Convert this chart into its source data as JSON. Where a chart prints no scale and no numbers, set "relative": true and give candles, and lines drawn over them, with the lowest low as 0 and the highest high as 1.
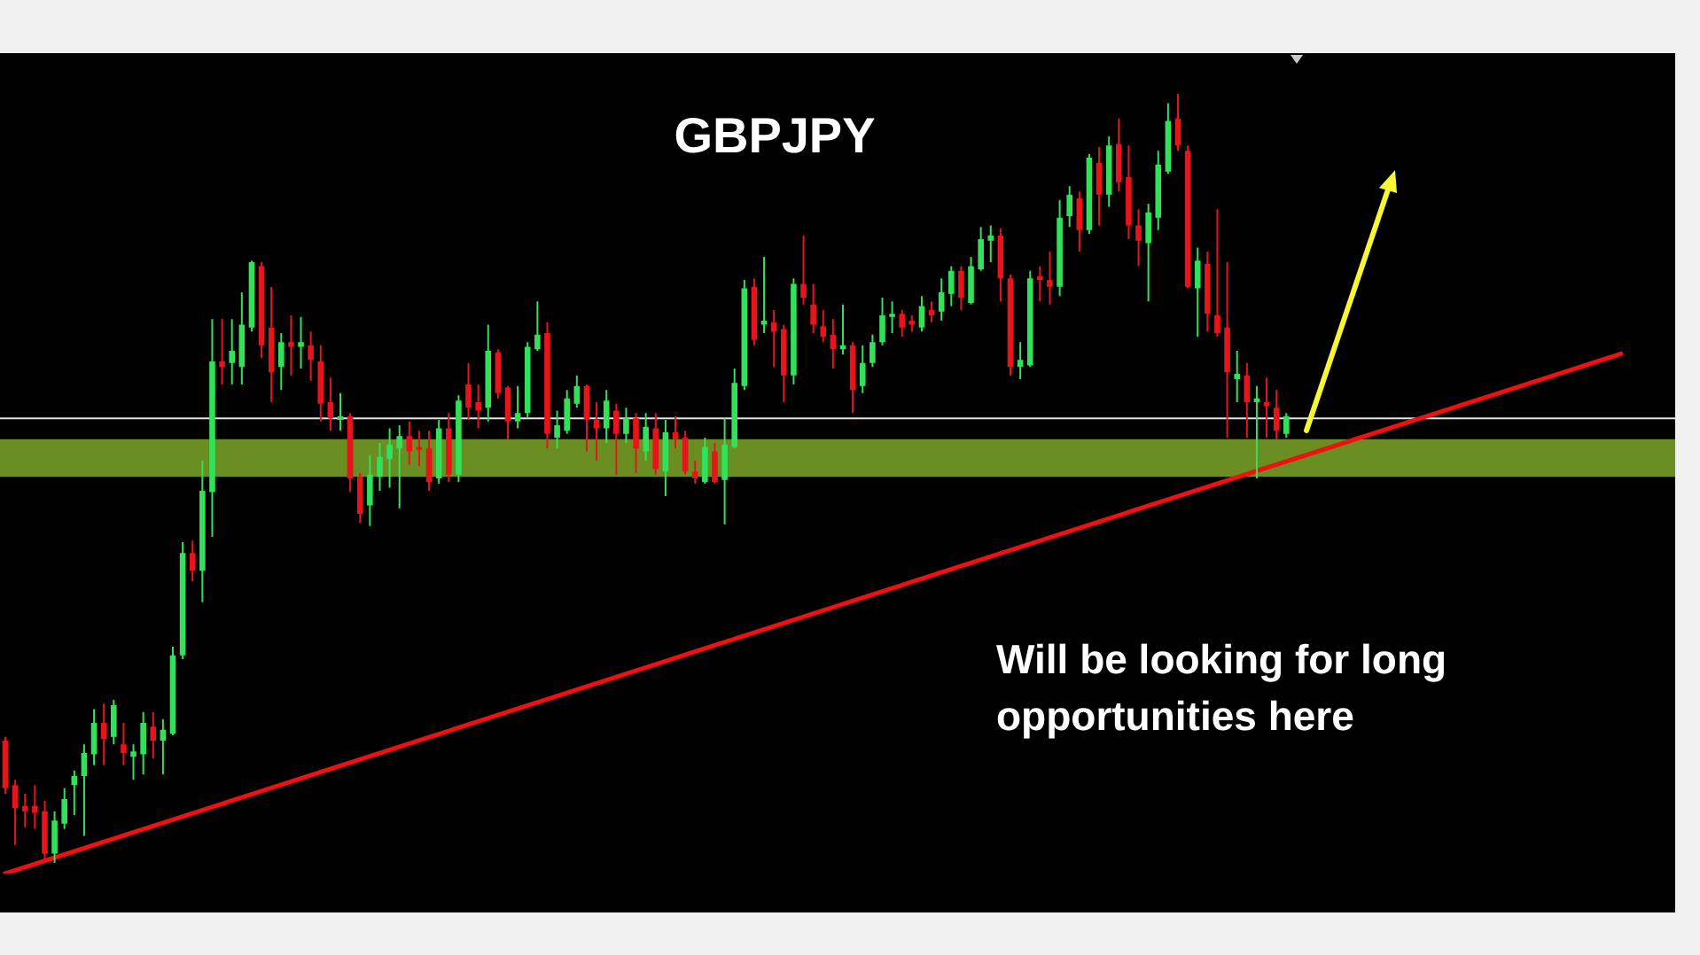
{
  "chart_data": {
    "type": "candlestick",
    "title": "GBPJPY",
    "annotations": [
      "Will be looking for long opportunities here"
    ],
    "relative": true,
    "categories": [
      null,
      null,
      null,
      null,
      null,
      null,
      null,
      null,
      null,
      null,
      null,
      null,
      null,
      null,
      null,
      null,
      null,
      null,
      null,
      null,
      null,
      null,
      null,
      null,
      null,
      null,
      null,
      null,
      null,
      null,
      null,
      null,
      null,
      null,
      null,
      null,
      null,
      null,
      null,
      null,
      null,
      null,
      null,
      null,
      null,
      null,
      null,
      null,
      null,
      null,
      null,
      null,
      null,
      null,
      null,
      null,
      null,
      null,
      null,
      null,
      null,
      null,
      null,
      null,
      null,
      null,
      null,
      null,
      null,
      null,
      null,
      null,
      null,
      null,
      null,
      null,
      null,
      null,
      null,
      null,
      null,
      null,
      null,
      null,
      null,
      null,
      null,
      null,
      null,
      null,
      null,
      null,
      null,
      null,
      null,
      null,
      null,
      null,
      null,
      null,
      null,
      null,
      null,
      null,
      null,
      null,
      null,
      null,
      null,
      null,
      null,
      null,
      null,
      null,
      null,
      null,
      null,
      null,
      null,
      null,
      null,
      null,
      null,
      null,
      null,
      null,
      null,
      null,
      null,
      null,
      null,
      null,
      null,
      null,
      null,
      null,
      null,
      null,
      null,
      null,
      null,
      null,
      null,
      null,
      null,
      null,
      null,
      null,
      null,
      null,
      null,
      null,
      null,
      null,
      null,
      null,
      null,
      null,
      null,
      null,
      null,
      null,
      null,
      null,
      null,
      null,
      null,
      null,
      null,
      null
    ],
    "ohlc": [
      [
        0.159,
        0.164,
        0.09,
        0.097
      ],
      [
        0.101,
        0.108,
        0.023,
        0.071
      ],
      [
        0.074,
        0.09,
        0.046,
        0.067
      ],
      [
        0.074,
        0.101,
        0.044,
        0.065
      ],
      [
        0.067,
        0.081,
        0.005,
        0.012
      ],
      [
        0.012,
        0.067,
        0,
        0.055
      ],
      [
        0.051,
        0.097,
        0.044,
        0.083
      ],
      [
        0.101,
        0.12,
        0.062,
        0.113
      ],
      [
        0.113,
        0.154,
        0.035,
        0.143
      ],
      [
        0.141,
        0.2,
        0.127,
        0.182
      ],
      [
        0.182,
        0.207,
        0.127,
        0.161
      ],
      [
        0.164,
        0.212,
        0.154,
        0.205
      ],
      [
        0.154,
        0.182,
        0.127,
        0.143
      ],
      [
        0.138,
        0.154,
        0.108,
        0.145
      ],
      [
        0.141,
        0.196,
        0.115,
        0.182
      ],
      [
        0.177,
        0.196,
        0.136,
        0.159
      ],
      [
        0.159,
        0.187,
        0.115,
        0.173
      ],
      [
        0.168,
        0.281,
        0.166,
        0.27
      ],
      [
        0.27,
        0.417,
        0.265,
        0.403
      ],
      [
        0.403,
        0.419,
        0.366,
        0.38
      ],
      [
        0.38,
        0.523,
        0.339,
        0.484
      ],
      [
        0.482,
        0.707,
        0.424,
        0.652
      ],
      [
        0.652,
        0.707,
        0.622,
        0.645
      ],
      [
        0.65,
        0.707,
        0.622,
        0.666
      ],
      [
        0.645,
        0.742,
        0.622,
        0.7
      ],
      [
        0.696,
        0.783,
        0.691,
        0.781
      ],
      [
        0.776,
        0.781,
        0.657,
        0.673
      ],
      [
        0.696,
        0.749,
        0.599,
        0.638
      ],
      [
        0.645,
        0.689,
        0.615,
        0.677
      ],
      [
        0.677,
        0.712,
        0.634,
        0.671
      ],
      [
        0.671,
        0.71,
        0.643,
        0.677
      ],
      [
        0.673,
        0.691,
        0.627,
        0.654
      ],
      [
        0.652,
        0.673,
        0.574,
        0.597
      ],
      [
        0.599,
        0.631,
        0.562,
        0.578
      ],
      [
        0.576,
        0.611,
        0.562,
        0.581
      ],
      [
        0.581,
        0.585,
        0.482,
        0.5
      ],
      [
        0.502,
        0.507,
        0.442,
        0.454
      ],
      [
        0.465,
        0.53,
        0.438,
        0.505
      ],
      [
        0.502,
        0.546,
        0.484,
        0.528
      ],
      [
        0.525,
        0.565,
        0.488,
        0.544
      ],
      [
        0.539,
        0.569,
        0.461,
        0.555
      ],
      [
        0.555,
        0.574,
        0.518,
        0.535
      ],
      [
        0.541,
        0.562,
        0.516,
        0.537
      ],
      [
        0.539,
        0.562,
        0.484,
        0.495
      ],
      [
        0.5,
        0.576,
        0.493,
        0.565
      ],
      [
        0.565,
        0.585,
        0.495,
        0.505
      ],
      [
        0.505,
        0.608,
        0.495,
        0.601
      ],
      [
        0.622,
        0.65,
        0.576,
        0.592
      ],
      [
        0.599,
        0.622,
        0.565,
        0.588
      ],
      [
        0.592,
        0.7,
        0.574,
        0.666
      ],
      [
        0.664,
        0.668,
        0.604,
        0.611
      ],
      [
        0.618,
        0.62,
        0.551,
        0.574
      ],
      [
        0.574,
        0.62,
        0.565,
        0.585
      ],
      [
        0.585,
        0.677,
        0.578,
        0.671
      ],
      [
        0.668,
        0.73,
        0.666,
        0.687
      ],
      [
        0.689,
        0.703,
        0.539,
        0.558
      ],
      [
        0.553,
        0.588,
        0.539,
        0.569
      ],
      [
        0.562,
        0.615,
        0.558,
        0.604
      ],
      [
        0.597,
        0.634,
        0.592,
        0.62
      ],
      [
        0.62,
        0.622,
        0.535,
        0.576
      ],
      [
        0.576,
        0.599,
        0.523,
        0.565
      ],
      [
        0.565,
        0.615,
        0.546,
        0.601
      ],
      [
        0.588,
        0.597,
        0.505,
        0.558
      ],
      [
        0.558,
        0.592,
        0.546,
        0.578
      ],
      [
        0.578,
        0.585,
        0.507,
        0.539
      ],
      [
        0.535,
        0.585,
        0.523,
        0.567
      ],
      [
        0.565,
        0.585,
        0.505,
        0.512
      ],
      [
        0.509,
        0.576,
        0.477,
        0.56
      ],
      [
        0.56,
        0.581,
        0.539,
        0.551
      ],
      [
        0.553,
        0.562,
        0.505,
        0.509
      ],
      [
        0.509,
        0.523,
        0.493,
        0.5
      ],
      [
        0.495,
        0.553,
        0.493,
        0.541
      ],
      [
        0.535,
        0.546,
        0.493,
        0.495
      ],
      [
        0.498,
        0.578,
        0.44,
        0.544
      ],
      [
        0.541,
        0.643,
        0.539,
        0.624
      ],
      [
        0.62,
        0.758,
        0.615,
        0.747
      ],
      [
        0.749,
        0.76,
        0.673,
        0.68
      ],
      [
        0.7,
        0.788,
        0.689,
        0.705
      ],
      [
        0.703,
        0.719,
        0.645,
        0.691
      ],
      [
        0.694,
        0.7,
        0.599,
        0.634
      ],
      [
        0.634,
        0.76,
        0.622,
        0.753
      ],
      [
        0.753,
        0.816,
        0.726,
        0.735
      ],
      [
        0.726,
        0.753,
        0.689,
        0.7
      ],
      [
        0.698,
        0.719,
        0.677,
        0.684
      ],
      [
        0.687,
        0.707,
        0.643,
        0.668
      ],
      [
        0.668,
        0.726,
        0.661,
        0.673
      ],
      [
        0.673,
        0.677,
        0.585,
        0.615
      ],
      [
        0.62,
        0.673,
        0.611,
        0.65
      ],
      [
        0.65,
        0.687,
        0.645,
        0.677
      ],
      [
        0.677,
        0.735,
        0.673,
        0.712
      ],
      [
        0.71,
        0.73,
        0.689,
        0.714
      ],
      [
        0.714,
        0.719,
        0.684,
        0.696
      ],
      [
        0.705,
        0.712,
        0.691,
        0.7
      ],
      [
        0.696,
        0.737,
        0.691,
        0.724
      ],
      [
        0.719,
        0.73,
        0.703,
        0.712
      ],
      [
        0.717,
        0.76,
        0.705,
        0.742
      ],
      [
        0.74,
        0.776,
        0.724,
        0.77
      ],
      [
        0.77,
        0.776,
        0.719,
        0.735
      ],
      [
        0.728,
        0.788,
        0.726,
        0.776
      ],
      [
        0.772,
        0.827,
        0.77,
        0.811
      ],
      [
        0.809,
        0.829,
        0.781,
        0.816
      ],
      [
        0.816,
        0.825,
        0.73,
        0.76
      ],
      [
        0.76,
        0.765,
        0.634,
        0.645
      ],
      [
        0.645,
        0.677,
        0.629,
        0.654
      ],
      [
        0.647,
        0.77,
        0.645,
        0.76
      ],
      [
        0.763,
        0.776,
        0.73,
        0.758
      ],
      [
        0.758,
        0.795,
        0.726,
        0.749
      ],
      [
        0.749,
        0.862,
        0.737,
        0.839
      ],
      [
        0.841,
        0.88,
        0.827,
        0.869
      ],
      [
        0.864,
        0.873,
        0.795,
        0.823
      ],
      [
        0.823,
        0.922,
        0.818,
        0.917
      ],
      [
        0.91,
        0.931,
        0.829,
        0.869
      ],
      [
        0.869,
        0.945,
        0.853,
        0.933
      ],
      [
        0.935,
        0.968,
        0.873,
        0.885
      ],
      [
        0.892,
        0.933,
        0.811,
        0.829
      ],
      [
        0.829,
        0.85,
        0.776,
        0.809
      ],
      [
        0.806,
        0.857,
        0.73,
        0.846
      ],
      [
        0.839,
        0.926,
        0.823,
        0.908
      ],
      [
        0.899,
        0.988,
        0.896,
        0.965
      ],
      [
        0.968,
        1,
        0.926,
        0.933
      ],
      [
        0.926,
        0.933,
        0.747,
        0.749
      ],
      [
        0.747,
        0.8,
        0.684,
        0.783
      ],
      [
        0.779,
        0.795,
        0.691,
        0.714
      ],
      [
        0.712,
        0.85,
        0.684,
        0.689
      ],
      [
        0.696,
        0.781,
        0.553,
        0.638
      ],
      [
        0.629,
        0.666,
        0.599,
        0.636
      ],
      [
        0.634,
        0.65,
        0.553,
        0.599
      ],
      [
        0.599,
        0.62,
        0.5,
        0.604
      ],
      [
        0.599,
        0.631,
        0.553,
        0.594
      ],
      [
        0.592,
        0.615,
        0.551,
        0.562
      ],
      [
        0.558,
        0.585,
        0.553,
        0.581
      ],
      null,
      null,
      null,
      null,
      null,
      null,
      null,
      null,
      null,
      null,
      null,
      null,
      null,
      null,
      null,
      null,
      null,
      null,
      null,
      null,
      null,
      null,
      null,
      null,
      null,
      null,
      null,
      null,
      null,
      null,
      null,
      null,
      null,
      null,
      null,
      null,
      null,
      null,
      null
    ],
    "colors": [
      "#e8141c",
      "#e8141c",
      "#e8141c",
      "#e8141c",
      "#e8141c",
      "#33e05a",
      "#33e05a",
      "#33e05a",
      "#33e05a",
      "#33e05a",
      "#e8141c",
      "#33e05a",
      "#e8141c",
      "#33e05a",
      "#33e05a",
      "#e8141c",
      "#33e05a",
      "#33e05a",
      "#33e05a",
      "#e8141c",
      "#33e05a",
      "#33e05a",
      "#e8141c",
      "#33e05a",
      "#33e05a",
      "#33e05a",
      "#e8141c",
      "#e8141c",
      "#33e05a",
      "#e8141c",
      "#33e05a",
      "#e8141c",
      "#e8141c",
      "#e8141c",
      "#33e05a",
      "#e8141c",
      "#e8141c",
      "#33e05a",
      "#33e05a",
      "#33e05a",
      "#33e05a",
      "#e8141c",
      "#e8141c",
      "#e8141c",
      "#33e05a",
      "#e8141c",
      "#33e05a",
      "#e8141c",
      "#e8141c",
      "#33e05a",
      "#e8141c",
      "#e8141c",
      "#33e05a",
      "#33e05a",
      "#33e05a",
      "#e8141c",
      "#33e05a",
      "#33e05a",
      "#33e05a",
      "#e8141c",
      "#e8141c",
      "#33e05a",
      "#e8141c",
      "#33e05a",
      "#e8141c",
      "#33e05a",
      "#e8141c",
      "#33e05a",
      "#e8141c",
      "#e8141c",
      "#e8141c",
      "#33e05a",
      "#e8141c",
      "#33e05a",
      "#33e05a",
      "#33e05a",
      "#e8141c",
      "#33e05a",
      "#e8141c",
      "#e8141c",
      "#33e05a",
      "#e8141c",
      "#e8141c",
      "#e8141c",
      "#e8141c",
      "#33e05a",
      "#e8141c",
      "#33e05a",
      "#33e05a",
      "#33e05a",
      "#33e05a",
      "#e8141c",
      "#e8141c",
      "#33e05a",
      "#e8141c",
      "#33e05a",
      "#33e05a",
      "#e8141c",
      "#33e05a",
      "#33e05a",
      "#33e05a",
      "#e8141c",
      "#e8141c",
      "#33e05a",
      "#33e05a",
      "#e8141c",
      "#e8141c",
      "#33e05a",
      "#33e05a",
      "#e8141c",
      "#33e05a",
      "#e8141c",
      "#33e05a",
      "#e8141c",
      "#e8141c",
      "#e8141c",
      "#33e05a",
      "#33e05a",
      "#33e05a",
      "#e8141c",
      "#e8141c",
      "#33e05a",
      "#e8141c",
      "#e8141c",
      "#e8141c",
      "#33e05a",
      "#e8141c",
      "#33e05a",
      "#e8141c",
      "#e8141c",
      "#33e05a",
      null,
      null,
      null,
      null,
      null,
      null,
      null,
      null,
      null,
      null,
      null,
      null,
      null,
      null,
      null,
      null,
      null,
      null,
      null,
      null,
      null,
      null,
      null,
      null,
      null,
      null,
      null,
      null,
      null,
      null,
      null,
      null,
      null,
      null,
      null,
      null,
      null,
      null,
      null
    ],
    "series": [
      {
        "type": "line",
        "color": "#f01010",
        "values": [
          -0.014,
          null,
          null,
          null,
          null,
          null,
          null,
          null,
          null,
          null,
          null,
          null,
          null,
          null,
          null,
          null,
          null,
          null,
          null,
          null,
          null,
          null,
          null,
          null,
          null,
          null,
          null,
          null,
          null,
          null,
          null,
          null,
          null,
          null,
          null,
          null,
          null,
          null,
          null,
          null,
          null,
          null,
          null,
          null,
          null,
          null,
          null,
          null,
          null,
          null,
          null,
          null,
          null,
          null,
          null,
          null,
          null,
          null,
          null,
          null,
          null,
          null,
          null,
          null,
          null,
          null,
          null,
          null,
          null,
          null,
          null,
          null,
          null,
          null,
          null,
          null,
          null,
          null,
          null,
          null,
          null,
          null,
          null,
          null,
          null,
          null,
          null,
          null,
          null,
          null,
          null,
          null,
          null,
          null,
          null,
          null,
          null,
          null,
          null,
          null,
          null,
          null,
          null,
          null,
          null,
          null,
          null,
          null,
          null,
          null,
          null,
          null,
          null,
          null,
          null,
          null,
          null,
          null,
          null,
          null,
          null,
          null,
          null,
          null,
          null,
          null,
          null,
          null,
          null,
          null,
          null,
          null,
          null,
          null,
          null,
          null,
          null,
          null,
          null,
          null,
          null,
          null,
          null,
          null,
          null,
          null,
          null,
          null,
          null,
          null,
          null,
          null,
          null,
          null,
          null,
          null,
          null,
          null,
          null,
          null,
          null,
          null,
          null,
          null,
          0.662,
          null,
          null,
          null,
          null,
          null
        ]
      }
    ],
    "ref_lines": [
      {
        "axis": "y",
        "value": 0.578,
        "color": "#e6e6e6"
      }
    ],
    "bands": [
      {
        "axis": "y",
        "from": 0.502,
        "to": 0.551,
        "color": "#6b8e23"
      }
    ]
  }
}
